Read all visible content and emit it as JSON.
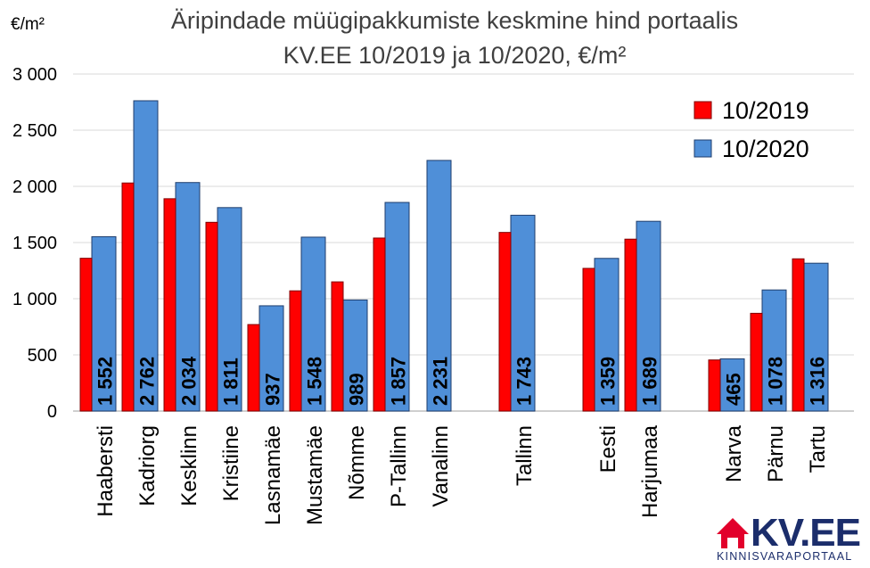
{
  "title_line1": "Äripindade müügipakkumiste keskmine hind portaalis",
  "title_line2": "KV.EE 10/2019 ja 10/2020, €/m²",
  "unit_label": "€/m²",
  "logo": {
    "brand": "KV.EE",
    "tagline": "KINNISVARAPORTAAL",
    "color": "#1b2d6b",
    "icon_color": "#e2002b"
  },
  "chart_data": {
    "type": "bar",
    "categories": [
      "Haabersti",
      "Kadriorg",
      "Kesklinn",
      "Kristiine",
      "Lasnamäe",
      "Mustamäe",
      "Nõmme",
      "P-Tallinn",
      "Vanalinn",
      "Tallinn",
      "Eesti",
      "Harjumaa",
      "Narva",
      "Pärnu",
      "Tartu"
    ],
    "series": [
      {
        "name": "10/2019",
        "color": "#ff0000",
        "values": [
          1360,
          2030,
          1890,
          1680,
          770,
          1070,
          1150,
          1540,
          null,
          1590,
          1270,
          1530,
          455,
          870,
          1355
        ]
      },
      {
        "name": "10/2020",
        "color": "#4f8fd8",
        "values": [
          1552,
          2762,
          2034,
          1811,
          937,
          1548,
          989,
          1857,
          2231,
          1743,
          1359,
          1689,
          465,
          1078,
          1316
        ]
      }
    ],
    "data_labels": [
      "1 552",
      "2 762",
      "2 034",
      "1 811",
      "937",
      "1 548",
      "989",
      "1 857",
      "2 231",
      "1 743",
      "1 359",
      "1 689",
      "465",
      "1 078",
      "1 316"
    ],
    "y_ticks": [
      "0",
      "500",
      "1 000",
      "1 500",
      "2 000",
      "2 500",
      "3 000"
    ],
    "y_tick_values": [
      0,
      500,
      1000,
      1500,
      2000,
      2500,
      3000
    ],
    "ylim": [
      0,
      3000
    ],
    "grid": true,
    "legend_position": "top-right",
    "group_gaps_after": [
      "Vanalinn",
      "Tallinn",
      "Harjumaa"
    ]
  }
}
